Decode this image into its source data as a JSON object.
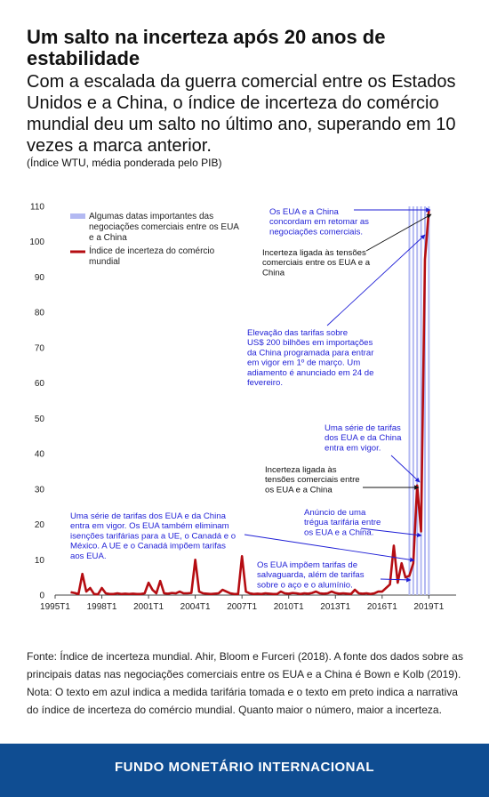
{
  "header": {
    "title": "Um salto na incerteza após 20 anos de estabilidade",
    "subtitle": "Com a escalada da guerra comercial entre os Estados Unidos e a China, o índice de incerteza do comércio mundial deu um salto no último ano, superando em 10 vezes a marca anterior.",
    "note": "(Índice WTU, média ponderada pelo PIB)"
  },
  "chart_data": {
    "type": "line",
    "xlim": [
      1995,
      2020.75
    ],
    "xticks": [
      {
        "value": 1995,
        "label": "1995T1"
      },
      {
        "value": 1998,
        "label": "1998T1"
      },
      {
        "value": 2001,
        "label": "2001T1"
      },
      {
        "value": 2004,
        "label": "2004T1"
      },
      {
        "value": 2007,
        "label": "2007T1"
      },
      {
        "value": 2010,
        "label": "2010T1"
      },
      {
        "value": 2013,
        "label": "2013T1"
      },
      {
        "value": 2016,
        "label": "2016T1"
      },
      {
        "value": 2019,
        "label": "2019T1"
      }
    ],
    "ylim": [
      0,
      110
    ],
    "yticks": [
      0,
      10,
      20,
      30,
      40,
      50,
      60,
      70,
      80,
      90,
      100,
      110
    ],
    "events": {
      "name": "Algumas datas importantes das negociações comerciais entre os EUA e a China",
      "color": "#b3b9f2",
      "x": [
        2017.75,
        2018,
        2018.25,
        2018.5,
        2018.75,
        2019
      ],
      "values": [
        110,
        110,
        110,
        110,
        110,
        110
      ]
    },
    "series": [
      {
        "name": "Índice de incerteza do comércio mundial",
        "color": "#b50d12",
        "x": [
          1996,
          1996.25,
          1996.5,
          1996.75,
          1997,
          1997.25,
          1997.5,
          1997.75,
          1998,
          1998.25,
          1998.5,
          1998.75,
          1999,
          1999.25,
          1999.5,
          1999.75,
          2000,
          2000.25,
          2000.5,
          2000.75,
          2001,
          2001.25,
          2001.5,
          2001.75,
          2002,
          2002.25,
          2002.5,
          2002.75,
          2003,
          2003.25,
          2003.5,
          2003.75,
          2004,
          2004.25,
          2004.5,
          2004.75,
          2005,
          2005.25,
          2005.5,
          2005.75,
          2006,
          2006.25,
          2006.5,
          2006.75,
          2007,
          2007.25,
          2007.5,
          2007.75,
          2008,
          2008.25,
          2008.5,
          2008.75,
          2009,
          2009.25,
          2009.5,
          2009.75,
          2010,
          2010.25,
          2010.5,
          2010.75,
          2011,
          2011.25,
          2011.5,
          2011.75,
          2012,
          2012.25,
          2012.5,
          2012.75,
          2013,
          2013.25,
          2013.5,
          2013.75,
          2014,
          2014.25,
          2014.5,
          2014.75,
          2015,
          2015.25,
          2015.5,
          2015.75,
          2016,
          2016.25,
          2016.5,
          2016.75,
          2017,
          2017.25,
          2017.5,
          2017.75,
          2018,
          2018.25,
          2018.5,
          2018.75,
          2019
        ],
        "values": [
          0.8,
          0.6,
          0.3,
          6,
          1,
          2,
          0.3,
          0.2,
          2,
          0.5,
          0.3,
          0.3,
          0.5,
          0.3,
          0.4,
          0.3,
          0.4,
          0.3,
          0.3,
          0.5,
          3.5,
          1.5,
          0.5,
          4,
          0.5,
          0.4,
          0.6,
          0.5,
          1,
          0.5,
          0.5,
          0.6,
          10,
          1,
          0.5,
          0.4,
          0.3,
          0.4,
          0.5,
          1.5,
          1,
          0.5,
          0.3,
          0.3,
          11,
          1,
          0.5,
          0.3,
          0.4,
          0.3,
          0.5,
          0.4,
          0.3,
          0.3,
          1,
          0.5,
          0.4,
          0.6,
          0.5,
          0.3,
          0.5,
          0.4,
          0.6,
          1,
          0.5,
          0.4,
          0.5,
          1,
          0.6,
          0.4,
          0.5,
          0.4,
          0.3,
          1.5,
          0.5,
          0.4,
          0.5,
          0.3,
          0.5,
          1,
          1,
          2,
          3,
          14,
          3.5,
          9,
          5,
          5.5,
          9,
          31,
          18,
          95,
          109
        ]
      }
    ],
    "annotations": [
      {
        "color": "#1f1fd6",
        "text": [
          "Os EUA e a China",
          "concordam em retomar as",
          "negociações comerciais."
        ]
      },
      {
        "color": "#111111",
        "text": [
          "Incerteza ligada às tensões",
          "comerciais entre os EUA e a",
          "China"
        ]
      },
      {
        "color": "#1f1fd6",
        "text": [
          "Elevação das tarifas sobre",
          "US$ 200 bilhões em importações",
          "da China programada para entrar",
          "em vigor em 1º de março. Um",
          "adiamento é anunciado em 24 de",
          "fevereiro."
        ]
      },
      {
        "color": "#1f1fd6",
        "text": [
          "Uma série de tarifas",
          "dos EUA e da China",
          "entra em vigor."
        ]
      },
      {
        "color": "#111111",
        "text": [
          "Incerteza ligada às",
          "tensões comerciais entre",
          "os EUA e a China"
        ]
      },
      {
        "color": "#1f1fd6",
        "text": [
          "Anúncio de uma",
          "trégua tarifária entre",
          "os EUA e a China."
        ]
      },
      {
        "color": "#1f1fd6",
        "text": [
          "Uma série de tarifas dos EUA e da China",
          "entra em vigor. Os EUA também eliminam",
          "isenções tarifárias para a UE, o Canadá e o",
          "México. A UE e o Canadá impõem tarifas",
          "aos EUA."
        ]
      },
      {
        "color": "#1f1fd6",
        "text": [
          "Os EUA impõem tarifas de",
          "salvaguarda, além de tarifas",
          "sobre o aço e o alumínio."
        ]
      }
    ]
  },
  "footer": {
    "source": "Fonte: Índice de incerteza mundial. Ahir, Bloom e Furceri (2018). A fonte dos dados sobre as principais datas nas negociações comerciais entre os EUA e a China é Bown e Kolb (2019). Nota: O texto em azul indica a medida tarifária tomada e o texto em preto indica a narrativa do índice de incerteza do comércio mundial. Quanto maior o número, maior a incerteza.",
    "brand": "FUNDO MONETÁRIO INTERNACIONAL"
  }
}
